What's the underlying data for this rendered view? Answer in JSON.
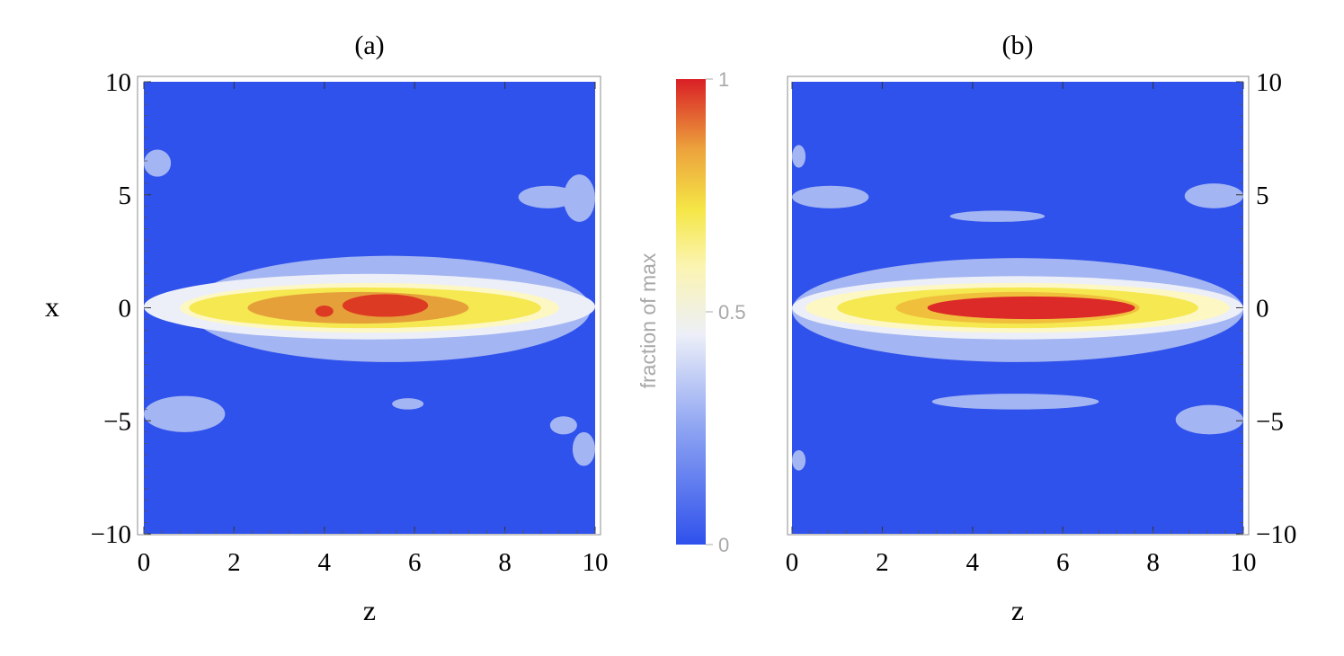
{
  "chart_data": [
    {
      "type": "heatmap",
      "title": "(a)",
      "xlabel": "z",
      "ylabel": "x",
      "xlim": [
        0,
        10
      ],
      "ylim": [
        -10,
        10
      ],
      "x_ticks": [
        "0",
        "2",
        "4",
        "6",
        "8",
        "10"
      ],
      "y_ticks": [
        "10",
        "5",
        "0",
        "−5",
        "−10"
      ],
      "y_axis_side": "left",
      "regions": [
        {
          "level": 0.25,
          "z": [
            1.0,
            9.9
          ],
          "x": [
            -2.4,
            2.3
          ]
        },
        {
          "level": 0.25,
          "z": [
            0.0,
            0.6
          ],
          "x": [
            5.8,
            7.0
          ]
        },
        {
          "level": 0.25,
          "z": [
            8.3,
            9.6
          ],
          "x": [
            4.4,
            5.4
          ]
        },
        {
          "level": 0.25,
          "z": [
            9.3,
            10.0
          ],
          "x": [
            3.8,
            5.9
          ]
        },
        {
          "level": 0.25,
          "z": [
            0.0,
            1.8
          ],
          "x": [
            -5.5,
            -3.9
          ]
        },
        {
          "level": 0.25,
          "z": [
            5.5,
            6.2
          ],
          "x": [
            -4.5,
            -4.0
          ]
        },
        {
          "level": 0.25,
          "z": [
            9.0,
            9.6
          ],
          "x": [
            -5.6,
            -4.8
          ]
        },
        {
          "level": 0.25,
          "z": [
            9.5,
            10.0
          ],
          "x": [
            -7.0,
            -5.5
          ]
        },
        {
          "level": 0.4,
          "z": [
            0.0,
            10.0
          ],
          "x": [
            -1.4,
            1.5
          ]
        },
        {
          "level": 0.6,
          "z": [
            0.8,
            9.2
          ],
          "x": [
            -1.1,
            1.1
          ]
        },
        {
          "level": 0.7,
          "z": [
            1.0,
            8.8
          ],
          "x": [
            -0.9,
            0.9
          ]
        },
        {
          "level": 0.8,
          "z": [
            2.3,
            7.2
          ],
          "x": [
            -0.7,
            0.7
          ]
        },
        {
          "level": 0.95,
          "z": [
            3.8,
            4.2
          ],
          "x": [
            -0.4,
            0.1
          ]
        },
        {
          "level": 0.95,
          "z": [
            4.4,
            6.3
          ],
          "x": [
            -0.4,
            0.6
          ]
        }
      ]
    },
    {
      "type": "heatmap",
      "title": "(b)",
      "xlabel": "z",
      "ylabel": "",
      "xlim": [
        0,
        10
      ],
      "ylim": [
        -10,
        10
      ],
      "x_ticks": [
        "0",
        "2",
        "4",
        "6",
        "8",
        "10"
      ],
      "y_ticks": [
        "10",
        "5",
        "0",
        "−5",
        "−10"
      ],
      "y_axis_side": "right",
      "regions": [
        {
          "level": 0.25,
          "z": [
            0.0,
            10.0
          ],
          "x": [
            -2.4,
            2.2
          ]
        },
        {
          "level": 0.25,
          "z": [
            0.0,
            1.7
          ],
          "x": [
            4.4,
            5.4
          ]
        },
        {
          "level": 0.25,
          "z": [
            3.5,
            5.6
          ],
          "x": [
            3.8,
            4.3
          ]
        },
        {
          "level": 0.25,
          "z": [
            8.7,
            10.0
          ],
          "x": [
            4.4,
            5.5
          ]
        },
        {
          "level": 0.25,
          "z": [
            3.1,
            6.8
          ],
          "x": [
            -4.5,
            -3.8
          ]
        },
        {
          "level": 0.25,
          "z": [
            8.5,
            10.0
          ],
          "x": [
            -5.6,
            -4.3
          ]
        },
        {
          "level": 0.25,
          "z": [
            0.0,
            0.3
          ],
          "x": [
            6.2,
            7.2
          ]
        },
        {
          "level": 0.25,
          "z": [
            0.0,
            0.3
          ],
          "x": [
            -7.2,
            -6.3
          ]
        },
        {
          "level": 0.4,
          "z": [
            0.0,
            10.0
          ],
          "x": [
            -1.4,
            1.4
          ]
        },
        {
          "level": 0.6,
          "z": [
            0.3,
            9.7
          ],
          "x": [
            -1.1,
            1.1
          ]
        },
        {
          "level": 0.7,
          "z": [
            1.0,
            9.0
          ],
          "x": [
            -0.9,
            0.9
          ]
        },
        {
          "level": 0.85,
          "z": [
            2.3,
            7.7
          ],
          "x": [
            -0.7,
            0.7
          ]
        },
        {
          "level": 1.0,
          "z": [
            3.0,
            7.6
          ],
          "x": [
            -0.5,
            0.5
          ]
        }
      ]
    }
  ],
  "colorbar": {
    "label": "fraction of max",
    "ticks": [
      "1",
      "0.5",
      "0"
    ],
    "range": [
      0,
      1
    ],
    "colors": {
      "0": "#2f51ec",
      "0.25": "#a3b5f2",
      "0.4": "#eceff8",
      "0.6": "#fdf7c4",
      "0.7": "#f5e850",
      "0.8": "#e6a03a",
      "0.85": "#f0c03c",
      "0.95": "#dc3a22",
      "1.0": "#dc2a28"
    }
  }
}
